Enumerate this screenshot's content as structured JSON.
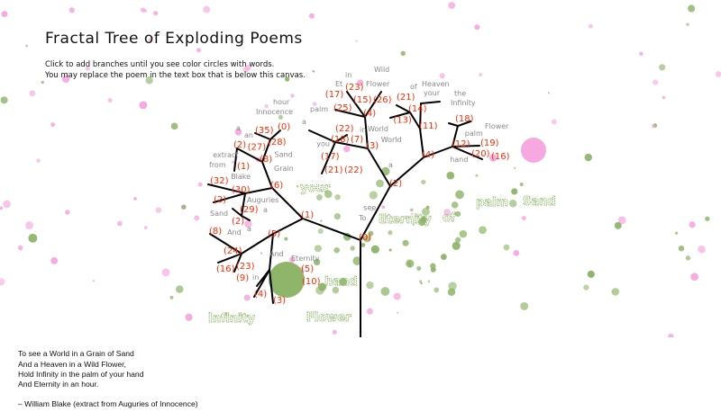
{
  "title": "Fractal Tree of Exploding Poems",
  "instructions": [
    "Click to add branches until you see color circles with words.",
    "You may replace the poem in the text box that is below this canvas."
  ],
  "poem": {
    "lines": [
      "To see a World in a Grain of Sand",
      "And a Heaven in a Wild Flower,",
      "Hold Infinity in the palm of your hand",
      "And Eternity in an hour.",
      "",
      "– William Blake (extract from Auguries of Innocence)"
    ]
  },
  "colors": {
    "branch": "#000000",
    "node_label": "#ff2a00",
    "word": "#888888",
    "green_circle": "#8fb56a",
    "pink_circle": "#f7a8e0",
    "exploded_word": "#8fb56a"
  },
  "node_labels": [
    "(0)",
    "(1)",
    "(2)",
    "(3)",
    "(4)",
    "(5)",
    "(6)",
    "(8)",
    "(11)",
    "(12)",
    "(4)",
    "(18)",
    "(7)",
    "(15)",
    "(26)",
    "(23)",
    "(25)",
    "(14)",
    "(13)",
    "(21)",
    "(22)",
    "(17)",
    "(18)",
    "(19)",
    "(20)",
    "(16)",
    "(35)",
    "(0)",
    "(28)",
    "(27)",
    "(2)",
    "(1)",
    "(32)",
    "(30)",
    "(2)",
    "(29)",
    "(2)",
    "(8)",
    "(24)",
    "(16)",
    "(23)",
    "(9)",
    "(4)",
    "(3)",
    "(5)",
    "(10)",
    "(17)",
    "(21)",
    "(22)"
  ],
  "words": [
    "in",
    "Wild",
    "Flower",
    "Et",
    "World",
    "Heaven",
    "your",
    "of",
    "Infinity",
    "the",
    "Flower",
    "palm",
    "Innocence",
    "hour",
    "a",
    "an",
    "Sand",
    "Grain",
    "from",
    "Blake",
    "extract",
    "Auguries",
    "Sand",
    "a",
    "And",
    "a",
    "And",
    "Eternity",
    "in",
    "palm",
    "a",
    "you",
    "World",
    "in",
    "a",
    "To",
    "see",
    "hand"
  ],
  "exploded_words": [
    "your",
    "Eternity",
    "of",
    "palm",
    "hand",
    "Infinity",
    "Flower",
    "Sand"
  ]
}
